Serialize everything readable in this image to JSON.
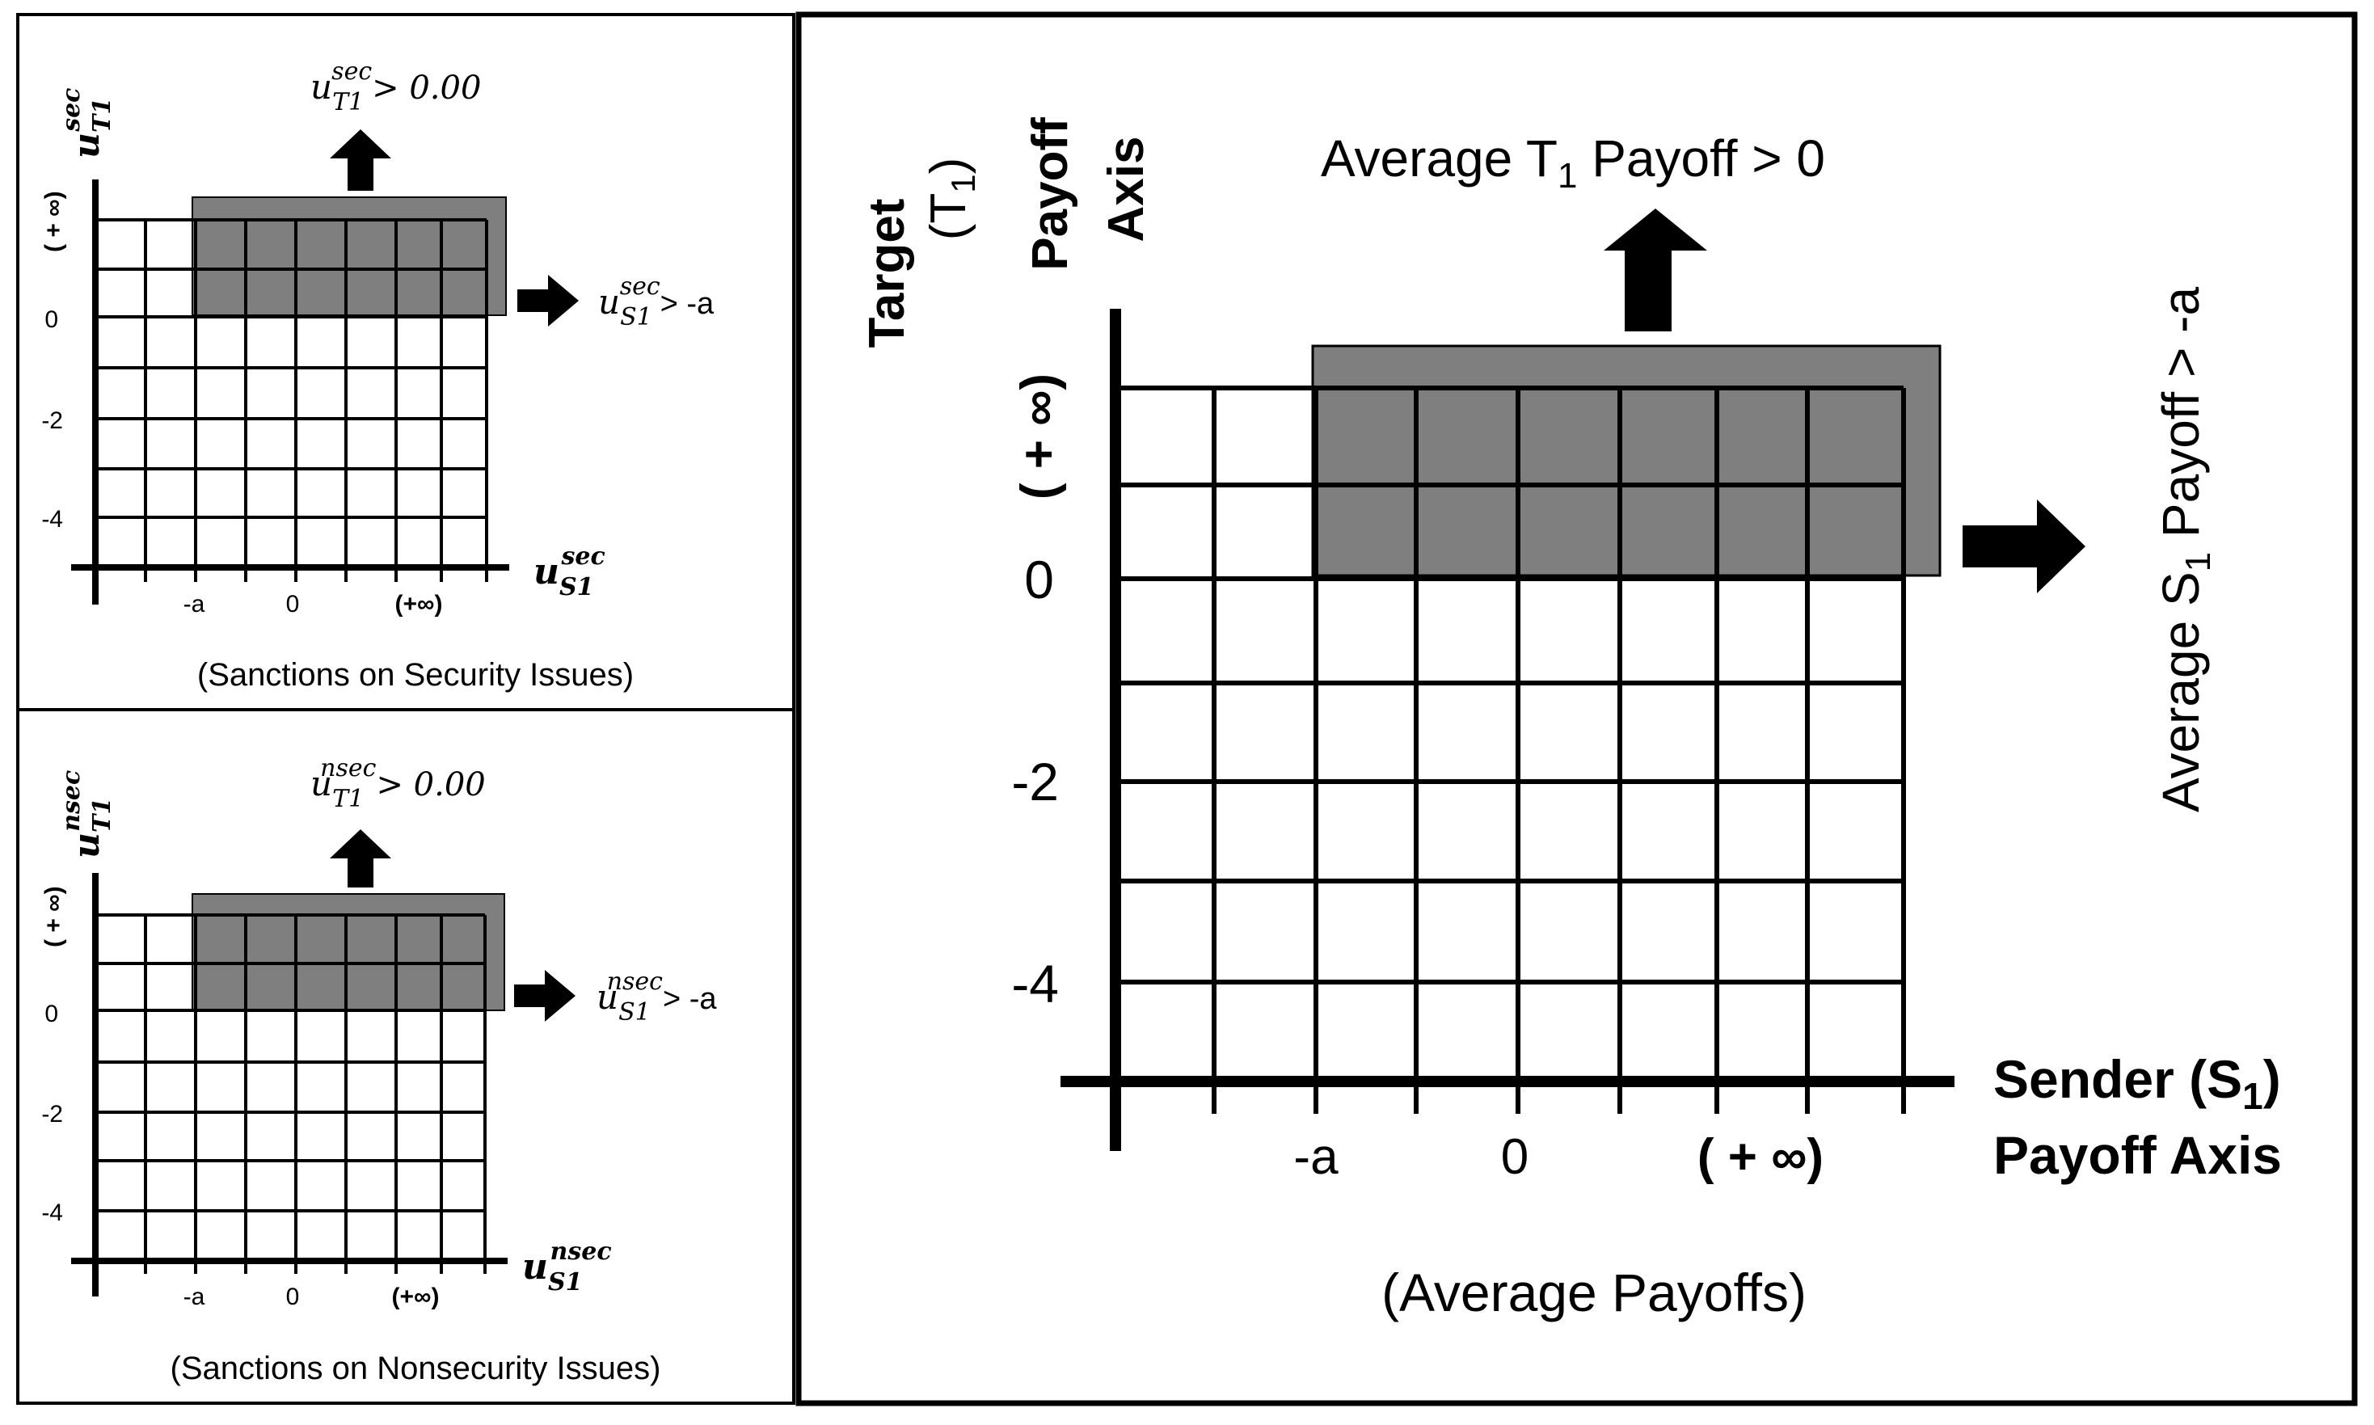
{
  "panels": {
    "security": {
      "y_axis_symbol": "u",
      "y_axis_sup": "sec",
      "y_axis_sub": "T1",
      "x_axis_symbol": "u",
      "x_axis_sup": "sec",
      "x_axis_sub": "S1",
      "y_infinity_label": "( + ∞)",
      "y_tick_labels": [
        "0",
        "-2",
        "-4"
      ],
      "x_tick_labels": [
        "-a",
        "0",
        "(+∞)"
      ],
      "top_condition_symbol": "u",
      "top_condition_sup": "sec",
      "top_condition_sub": "T1",
      "top_condition_text": "> 0.00",
      "right_condition_symbol": "u",
      "right_condition_sup": "sec",
      "right_condition_sub": "S1",
      "right_condition_text": "> -a",
      "caption": "(Sanctions on Security Issues)"
    },
    "nonsecurity": {
      "y_axis_symbol": "u",
      "y_axis_sup": "nsec",
      "y_axis_sub": "T1",
      "x_axis_symbol": "u",
      "x_axis_sup": "nsec",
      "x_axis_sub": "S1",
      "y_infinity_label": "( + ∞)",
      "y_tick_labels": [
        "0",
        "-2",
        "-4"
      ],
      "x_tick_labels": [
        "-a",
        "0",
        "(+∞)"
      ],
      "top_condition_symbol": "u",
      "top_condition_sup": "nsec",
      "top_condition_sub": "T1",
      "top_condition_text": "> 0.00",
      "right_condition_symbol": "u",
      "right_condition_sup": "nsec",
      "right_condition_sub": "S1",
      "right_condition_text": "> -a",
      "caption": "(Sanctions on Nonsecurity Issues)"
    },
    "average": {
      "y_axis_label_lines": [
        "Target",
        "(T",
        "1",
        ")",
        "Payoff",
        "Axis"
      ],
      "y_axis_line1": "Target",
      "y_axis_line2_pre": "(T",
      "y_axis_line2_sub": "1",
      "y_axis_line2_post": ")",
      "y_axis_line3": "Payoff",
      "y_axis_line4": "Axis",
      "x_axis_line1_pre": "Sender (S",
      "x_axis_line1_sub": "1",
      "x_axis_line1_post": ")",
      "x_axis_line2": "Payoff Axis",
      "y_infinity_label": "( + ∞)",
      "y_tick_labels": [
        "0",
        "-2",
        "-4"
      ],
      "x_tick_labels": [
        "-a",
        "0",
        "( + ∞)"
      ],
      "top_condition_pre": "Average T",
      "top_condition_sub": "1",
      "top_condition_post": " Payoff > 0",
      "right_condition_pre": "Average S",
      "right_condition_sub": "1",
      "right_condition_post": " Payoff > -a",
      "caption": "(Average Payoffs)"
    }
  },
  "colors": {
    "shaded_region": "#7f7f7f",
    "line": "#000000",
    "background": "#ffffff"
  }
}
